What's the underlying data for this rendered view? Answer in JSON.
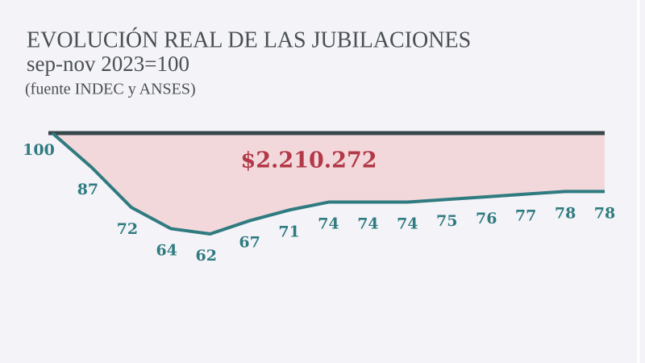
{
  "chart_data": {
    "type": "line",
    "title": "EVOLUCIÓN REAL DE LAS JUBILACIONES",
    "subtitle": "sep-nov 2023=100",
    "source": "(fuente INDEC y ANSES)",
    "annotation": "$2.210.272",
    "reference_line": 100,
    "values": [
      100,
      87,
      72,
      64,
      62,
      67,
      71,
      74,
      74,
      74,
      75,
      76,
      77,
      78,
      78
    ],
    "color": "#2f7b80",
    "reference_color": "#37474a",
    "fill_color": "#f3d8db",
    "annotation_color": "#b23a48"
  }
}
